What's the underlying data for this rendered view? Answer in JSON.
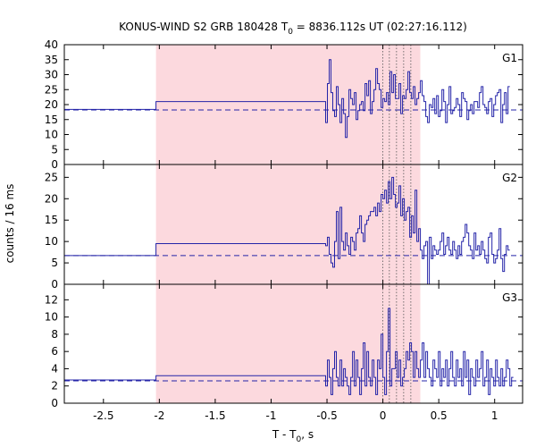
{
  "chart_data": {
    "type": "line",
    "title": "KONUS-WIND S2 GRB 180428 T",
    "title_sub": "0",
    "title_rest": " = 8836.112s UT (02:27:16.112)",
    "xlabel": "T - T",
    "xlabel_sub": "0",
    "xlabel_rest": ", s",
    "ylabel": "counts / 16 ms",
    "xlim": [
      -2.85,
      1.25
    ],
    "x_ticks": [
      -2.5,
      -2,
      -1.5,
      -1,
      -0.5,
      0,
      0.5,
      1
    ],
    "x_tick_labels": [
      "-2.5",
      "-2",
      "-1.5",
      "-1",
      "-0.5",
      "0",
      "0.5",
      "1"
    ],
    "shaded_interval": [
      -2.03,
      0.335
    ],
    "vlines": [
      0.0,
      0.058,
      0.122,
      0.186,
      0.25
    ],
    "colors": {
      "line": "#2424a8",
      "shade": "#fcd9de",
      "guide": "#555555"
    },
    "panels": [
      {
        "label": "G1",
        "ylim": [
          0,
          40
        ],
        "y_ticks": [
          0,
          5,
          10,
          15,
          20,
          25,
          30,
          35,
          40
        ],
        "y_tick_labels": [
          "0",
          "5",
          "10",
          "15",
          "20",
          "25",
          "30",
          "35",
          "40"
        ],
        "background": 18.2,
        "pre_burst": [
          {
            "x0": -2.85,
            "x1": -2.03,
            "y": 18.4
          },
          {
            "x0": -2.03,
            "x1": -0.512,
            "y": 21.0
          }
        ],
        "t_start": -0.512,
        "dt": 0.016,
        "counts": [
          14,
          27,
          35,
          24,
          18,
          16,
          26,
          20,
          14,
          22,
          17,
          9,
          16,
          25,
          22,
          20,
          24,
          15,
          18,
          20,
          21,
          18,
          27,
          23,
          28,
          17,
          21,
          25,
          32,
          27,
          25,
          19,
          22,
          21,
          24,
          20,
          31,
          24,
          30,
          22,
          22,
          27,
          17,
          23,
          22,
          25,
          31,
          24,
          22,
          26,
          20,
          22,
          24,
          28,
          23,
          21,
          16,
          14,
          20,
          19,
          22,
          17,
          23,
          16,
          18,
          25,
          21,
          14,
          20,
          26,
          17,
          18,
          19,
          22,
          20,
          16,
          24,
          22,
          21,
          15,
          18,
          20,
          17,
          21,
          21,
          19,
          24,
          26,
          20,
          19,
          17,
          21,
          22,
          16,
          20,
          23,
          24,
          25,
          14,
          20,
          24,
          17,
          26
        ]
      },
      {
        "label": "G2",
        "ylim": [
          0,
          28
        ],
        "y_ticks": [
          0,
          5,
          10,
          15,
          20,
          25
        ],
        "y_tick_labels": [
          "0",
          "5",
          "10",
          "15",
          "20",
          "25"
        ],
        "background": 6.7,
        "pre_burst": [
          {
            "x0": -2.85,
            "x1": -2.03,
            "y": 6.7
          },
          {
            "x0": -2.03,
            "x1": -0.512,
            "y": 9.5
          }
        ],
        "t_start": -0.512,
        "dt": 0.016,
        "counts": [
          9,
          11,
          7,
          5,
          4,
          10,
          17,
          6,
          18,
          10,
          8,
          12,
          9,
          7,
          11,
          10,
          8,
          12,
          13,
          16,
          12,
          10,
          14,
          15,
          16,
          17,
          17,
          18,
          16,
          19,
          17,
          21,
          20,
          22,
          19,
          24,
          20,
          25,
          21,
          18,
          19,
          23,
          16,
          20,
          15,
          17,
          18,
          11,
          16,
          12,
          22,
          10,
          13,
          8,
          6,
          9,
          10,
          0,
          11,
          6,
          9,
          8,
          7,
          8,
          10,
          12,
          7,
          9,
          11,
          8,
          7,
          10,
          8,
          6,
          9,
          7,
          10,
          11,
          14,
          12,
          9,
          8,
          6,
          12,
          8,
          9,
          7,
          10,
          8,
          6,
          5,
          11,
          12,
          7,
          5,
          6,
          8,
          13,
          6,
          3,
          7,
          9,
          8
        ]
      },
      {
        "label": "G3",
        "ylim": [
          0,
          13.8
        ],
        "y_ticks": [
          0,
          2,
          4,
          6,
          8,
          10,
          12
        ],
        "y_tick_labels": [
          "0",
          "2",
          "4",
          "6",
          "8",
          "10",
          "12"
        ],
        "background": 2.6,
        "pre_burst": [
          {
            "x0": -2.85,
            "x1": -2.03,
            "y": 2.7
          },
          {
            "x0": -2.03,
            "x1": -0.512,
            "y": 3.2
          }
        ],
        "t_start": -0.512,
        "dt": 0.016,
        "counts": [
          2,
          5,
          3,
          1,
          4,
          6,
          3,
          2,
          5,
          2,
          4,
          3,
          2,
          1,
          3,
          6,
          2,
          5,
          3,
          1,
          4,
          7,
          2,
          6,
          3,
          2,
          5,
          3,
          1,
          5,
          4,
          8,
          3,
          1,
          6,
          11,
          2,
          4,
          4,
          6,
          3,
          5,
          2,
          3,
          4,
          6,
          5,
          7,
          6,
          3,
          6,
          4,
          3,
          5,
          7,
          3,
          6,
          4,
          3,
          2,
          5,
          4,
          3,
          6,
          2,
          4,
          3,
          5,
          2,
          4,
          6,
          3,
          2,
          5,
          3,
          4,
          2,
          6,
          3,
          5,
          1,
          4,
          3,
          2,
          5,
          3,
          4,
          6,
          2,
          3,
          5,
          1,
          4,
          3,
          2,
          5,
          3,
          2,
          4,
          2,
          3,
          5,
          4,
          2,
          3
        ]
      }
    ]
  }
}
